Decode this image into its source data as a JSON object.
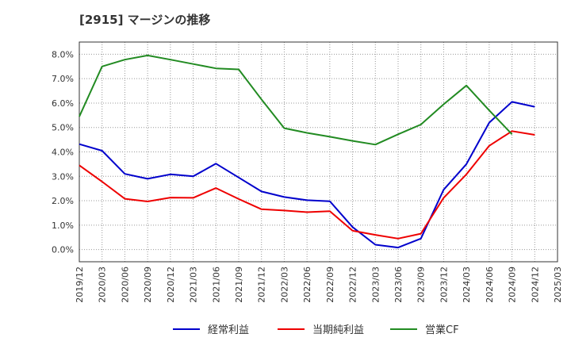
{
  "chart_data": {
    "type": "line",
    "title": "[2915]  マージンの推移",
    "x": [
      "2019/12",
      "2020/03",
      "2020/06",
      "2020/09",
      "2020/12",
      "2021/03",
      "2021/06",
      "2021/09",
      "2021/12",
      "2022/03",
      "2022/06",
      "2022/09",
      "2022/12",
      "2023/03",
      "2023/06",
      "2023/09",
      "2023/12",
      "2024/03",
      "2024/06",
      "2024/09",
      "2024/12",
      "2025/03"
    ],
    "y_ticks": [
      "0.0%",
      "1.0%",
      "2.0%",
      "3.0%",
      "4.0%",
      "5.0%",
      "6.0%",
      "7.0%",
      "8.0%"
    ],
    "ylim": [
      -0.5,
      8.5
    ],
    "grid": true,
    "legend_position": "bottom",
    "series": [
      {
        "name": "経常利益",
        "color": "#0000cc",
        "values": [
          4.32,
          4.05,
          3.1,
          2.9,
          3.08,
          3.0,
          3.52,
          2.95,
          2.38,
          2.15,
          2.02,
          1.98,
          0.92,
          0.2,
          0.08,
          0.45,
          2.45,
          3.5,
          5.2,
          6.05,
          5.85,
          null
        ]
      },
      {
        "name": "当期純利益",
        "color": "#ee0000",
        "values": [
          3.45,
          2.78,
          2.08,
          1.97,
          2.13,
          2.12,
          2.52,
          2.07,
          1.65,
          1.6,
          1.53,
          1.57,
          0.77,
          0.6,
          0.45,
          0.65,
          2.12,
          3.08,
          4.25,
          4.85,
          4.7,
          null
        ]
      },
      {
        "name": "営業CF",
        "color": "#228b22",
        "values": [
          5.45,
          7.5,
          7.78,
          7.95,
          7.78,
          7.6,
          7.42,
          7.38,
          6.15,
          4.97,
          4.78,
          4.62,
          4.45,
          4.3,
          4.72,
          5.12,
          5.95,
          6.72,
          5.7,
          4.72,
          null,
          null
        ]
      }
    ]
  }
}
